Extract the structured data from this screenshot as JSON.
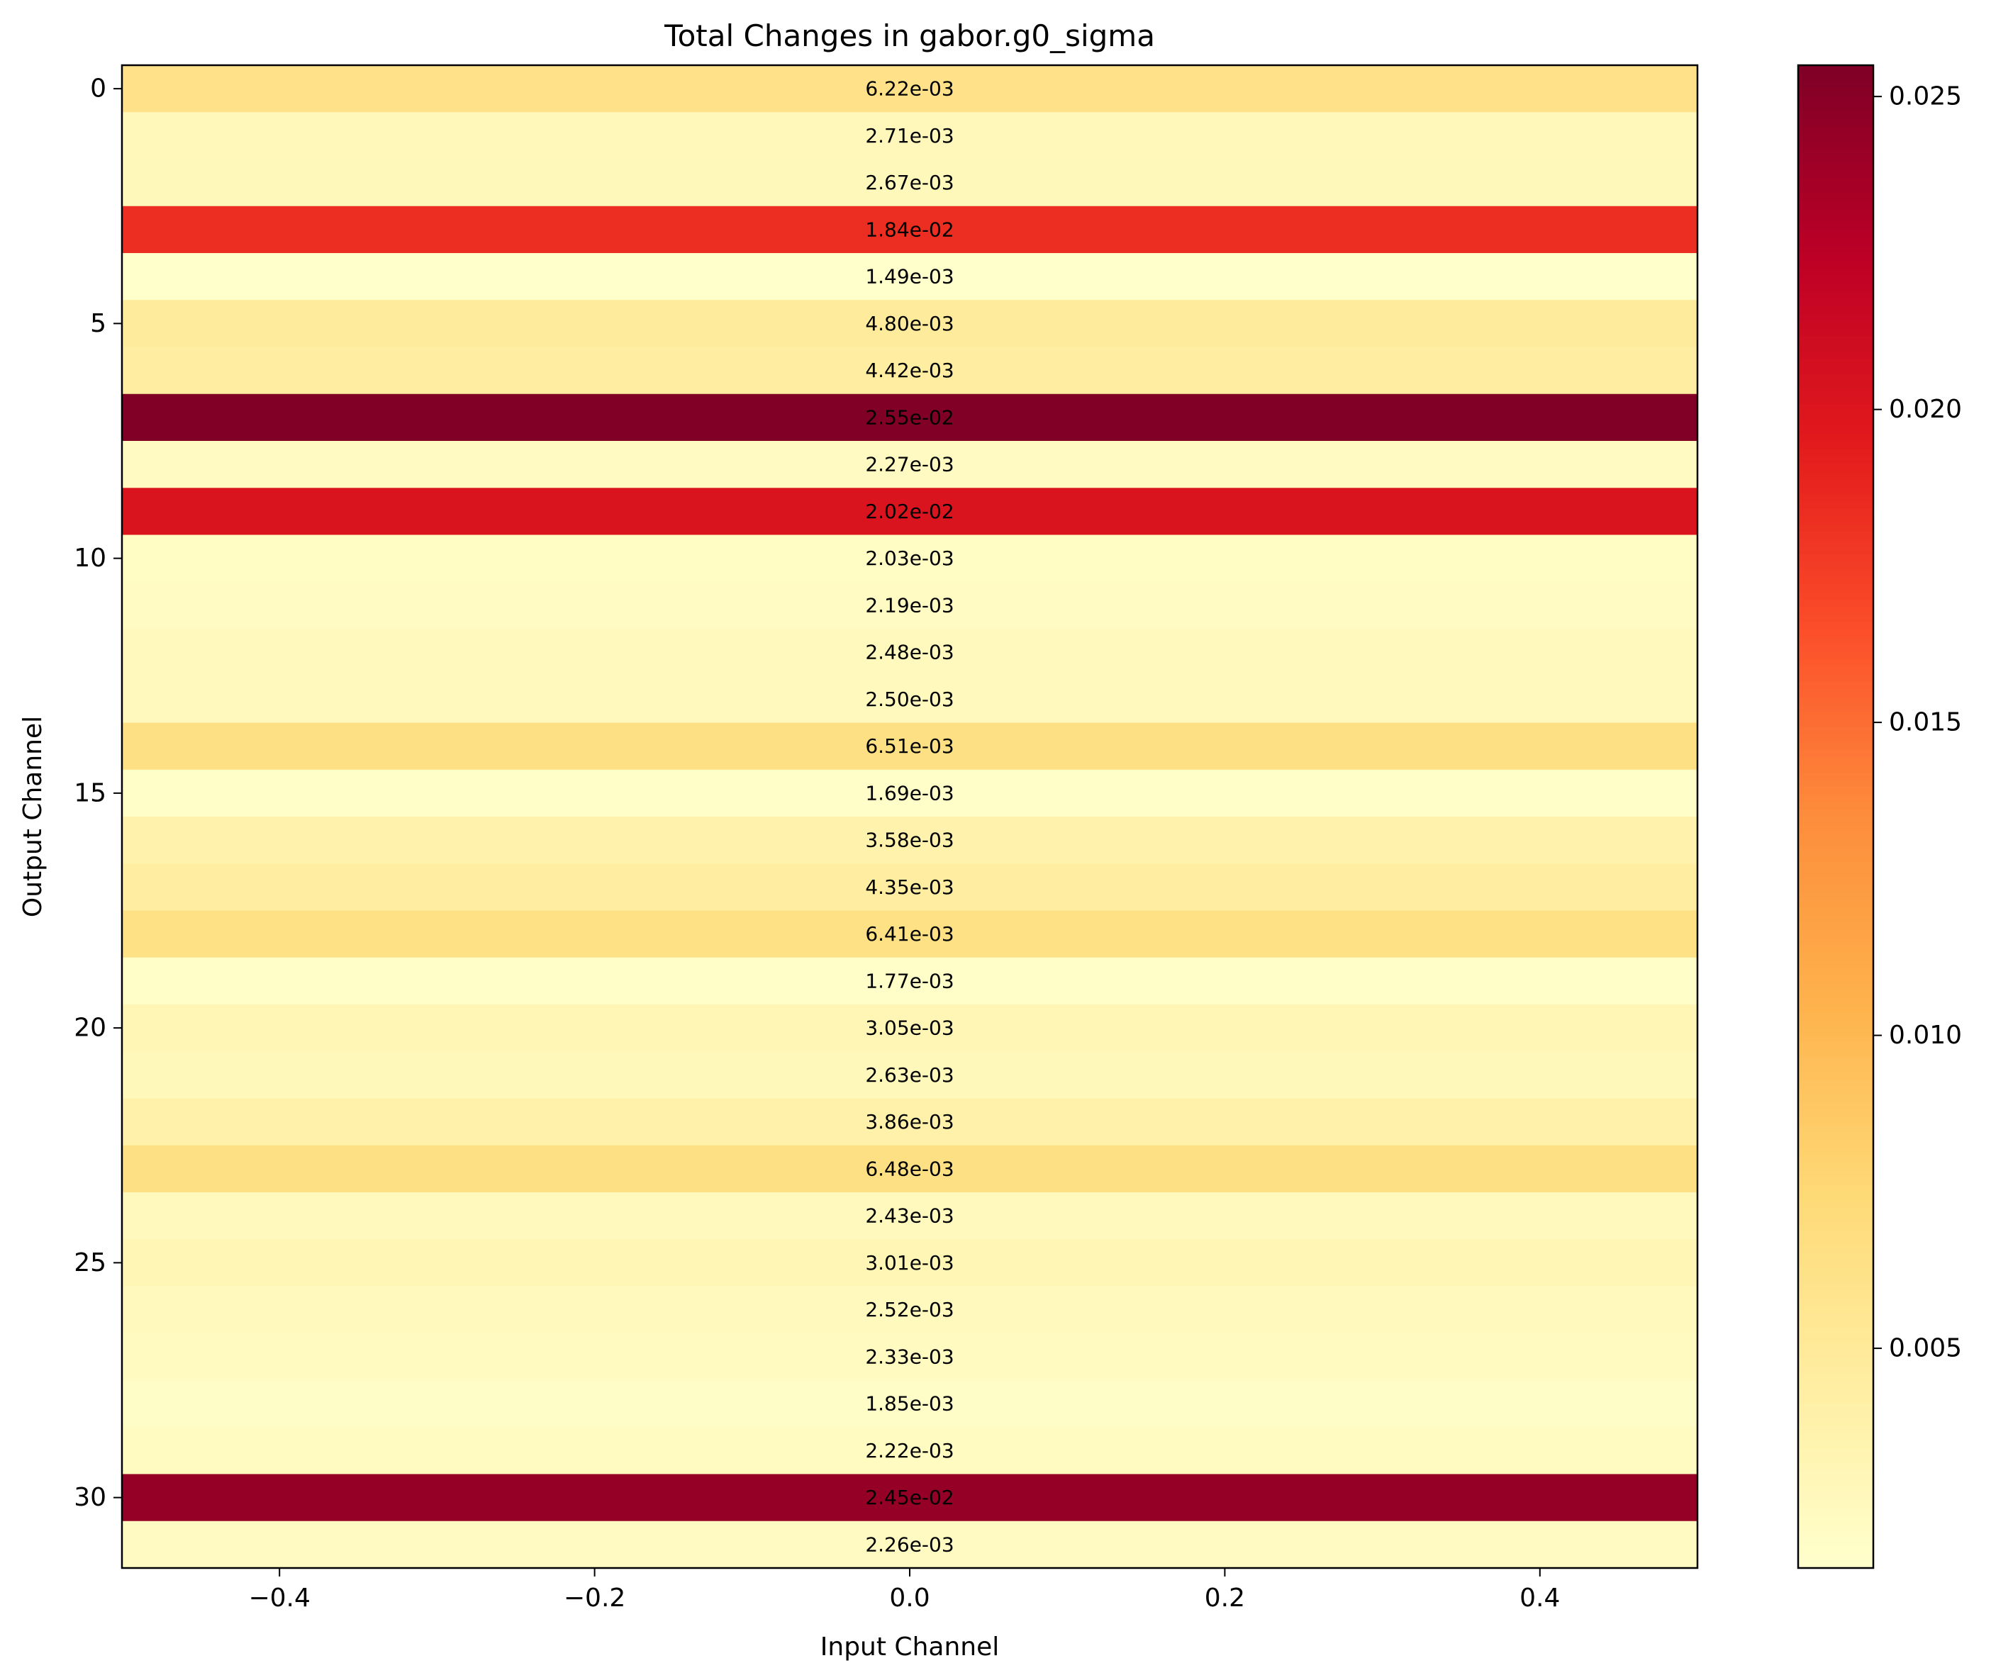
{
  "chart_data": {
    "type": "heatmap",
    "title": "Total Changes in gabor.g0_sigma",
    "xlabel": "Input Channel",
    "ylabel": "Output Channel",
    "xlim": [
      -0.5,
      0.5
    ],
    "ylim": [
      31.5,
      -0.5
    ],
    "x_ticks": [
      -0.4,
      -0.2,
      0.0,
      0.2,
      0.4
    ],
    "x_tick_labels": [
      "−0.4",
      "−0.2",
      "0.0",
      "0.2",
      "0.4"
    ],
    "y_ticks": [
      0,
      5,
      10,
      15,
      20,
      25,
      30
    ],
    "y_tick_labels": [
      "0",
      "5",
      "10",
      "15",
      "20",
      "25",
      "30"
    ],
    "colormap": "YlOrRd",
    "colorbar": {
      "vmin": 0.00149,
      "vmax": 0.0255,
      "ticks": [
        0.005,
        0.01,
        0.015,
        0.02,
        0.025
      ],
      "tick_labels": [
        "0.005",
        "0.010",
        "0.015",
        "0.020",
        "0.025"
      ]
    },
    "values": [
      0.00622,
      0.00271,
      0.00267,
      0.0184,
      0.00149,
      0.0048,
      0.00442,
      0.0255,
      0.00227,
      0.0202,
      0.00203,
      0.00219,
      0.00248,
      0.0025,
      0.00651,
      0.00169,
      0.00358,
      0.00435,
      0.00641,
      0.00177,
      0.00305,
      0.00263,
      0.00386,
      0.00648,
      0.00243,
      0.00301,
      0.00252,
      0.00233,
      0.00185,
      0.00222,
      0.0245,
      0.00226
    ],
    "cell_labels": [
      "6.22e-03",
      "2.71e-03",
      "2.67e-03",
      "1.84e-02",
      "1.49e-03",
      "4.80e-03",
      "4.42e-03",
      "2.55e-02",
      "2.27e-03",
      "2.02e-02",
      "2.03e-03",
      "2.19e-03",
      "2.48e-03",
      "2.50e-03",
      "6.51e-03",
      "1.69e-03",
      "3.58e-03",
      "4.35e-03",
      "6.41e-03",
      "1.77e-03",
      "3.05e-03",
      "2.63e-03",
      "3.86e-03",
      "6.48e-03",
      "2.43e-03",
      "3.01e-03",
      "2.52e-03",
      "2.33e-03",
      "1.85e-03",
      "2.22e-03",
      "2.45e-02",
      "2.26e-03"
    ]
  }
}
